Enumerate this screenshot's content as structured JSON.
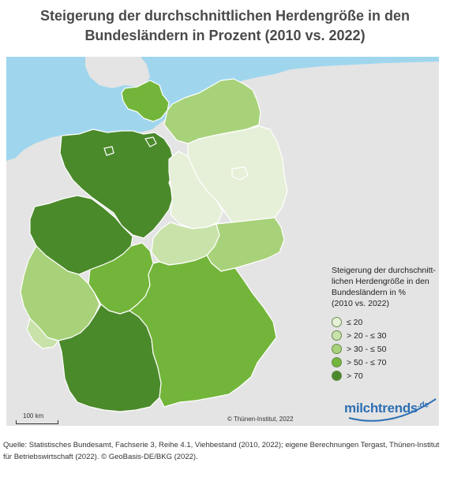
{
  "title": {
    "line1": "Steigerung der durchschnittlichen Herdengröße in den",
    "line2": "Bundesländern in Prozent (2010 vs. 2022)"
  },
  "legend": {
    "title_lines": [
      "Steigerung der durchschnitt-",
      "lichen Herdengröße in den",
      "Bundesländern in %",
      "(2010 vs. 2022)"
    ],
    "classes": [
      {
        "label": "≤ 20",
        "color": "#e6f0d8"
      },
      {
        "label": "> 20 - ≤ 30",
        "color": "#c9e2aa"
      },
      {
        "label": "> 30 - ≤ 50",
        "color": "#a8d27a"
      },
      {
        "label": "> 50 - ≤ 70",
        "color": "#73b53a"
      },
      {
        "label": "> 70",
        "color": "#4b8a2b"
      }
    ]
  },
  "states": [
    {
      "name": "Schleswig-Holstein",
      "class": 3
    },
    {
      "name": "Mecklenburg-Vorpommern",
      "class": 2
    },
    {
      "name": "Niedersachsen",
      "class": 4
    },
    {
      "name": "Bremen",
      "class": 4
    },
    {
      "name": "Hamburg",
      "class": 4
    },
    {
      "name": "Brandenburg",
      "class": 0
    },
    {
      "name": "Berlin",
      "class": 0
    },
    {
      "name": "Sachsen-Anhalt",
      "class": 0
    },
    {
      "name": "Nordrhein-Westfalen",
      "class": 4
    },
    {
      "name": "Hessen",
      "class": 3
    },
    {
      "name": "Thüringen",
      "class": 1
    },
    {
      "name": "Sachsen",
      "class": 2
    },
    {
      "name": "Rheinland-Pfalz",
      "class": 2
    },
    {
      "name": "Saarland",
      "class": 1
    },
    {
      "name": "Baden-Württemberg",
      "class": 4
    },
    {
      "name": "Bayern",
      "class": 3
    }
  ],
  "map": {
    "sea_color": "#9fd6ee",
    "land_color": "#e4e4e4",
    "border_color": "#ffffff"
  },
  "scale_label": "100 km",
  "copyright": "© Thünen-Institut, 2022",
  "brand": {
    "name": "milchtrends",
    "sup": ".de",
    "color": "#2e6fb3"
  },
  "source": {
    "line1": "Quelle: Statistisches Bundesamt, Fachserie 3, Reihe 4.1, Viehbestand (2010, 2022); eigene Berechnungen Tergast, Thünen-Institut",
    "line2": "für Betriebswirtschaft (2022). © GeoBasis-DE/BKG (2022)."
  }
}
